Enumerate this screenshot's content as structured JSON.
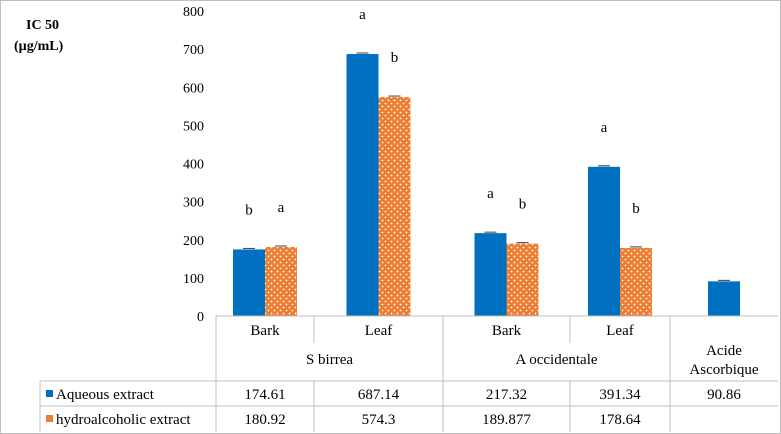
{
  "chart_data": {
    "type": "bar",
    "ylabel_line1": "IC 50",
    "ylabel_line2": "(µg/mL)",
    "ylim": [
      0,
      800
    ],
    "yticks": [
      "0",
      "100",
      "200",
      "300",
      "400",
      "500",
      "600",
      "700",
      "800"
    ],
    "grid": false,
    "legend": "table-bottom",
    "groups": [
      {
        "label": "S birrea",
        "categories": [
          "Bark",
          "Leaf"
        ]
      },
      {
        "label": "A occidentale",
        "categories": [
          "Bark",
          "Leaf"
        ]
      },
      {
        "label": "Acide Ascorbique",
        "label_lines": [
          "Acide",
          "Ascorbique"
        ],
        "categories": [
          ""
        ]
      }
    ],
    "categories": [
      "Bark",
      "Leaf",
      "Bark",
      "Leaf",
      ""
    ],
    "series": [
      {
        "name": "Aqueous extract",
        "color": "#0070c0",
        "values": [
          174.61,
          687.14,
          217.32,
          391.34,
          90.86
        ],
        "table_values": [
          "174.61",
          "687.14",
          "217.32",
          "391.34",
          "90.86"
        ],
        "annotations": [
          "b",
          "a",
          "a",
          "a",
          ""
        ]
      },
      {
        "name": "hydroalcoholic extract",
        "color": "#ed7d31",
        "pattern": "white-dots",
        "values": [
          180.92,
          574.3,
          189.877,
          178.64,
          null
        ],
        "table_values": [
          "180.92",
          "574.3",
          "189.877",
          "178.64",
          ""
        ],
        "annotations": [
          "a",
          "b",
          "b",
          "b",
          ""
        ]
      }
    ]
  }
}
